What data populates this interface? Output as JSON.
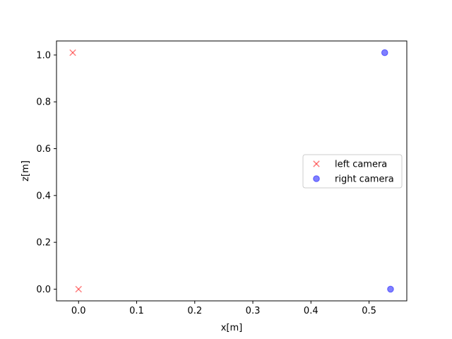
{
  "chart_data": {
    "type": "scatter",
    "title": "",
    "xlabel": "x[m]",
    "ylabel": "z[m]",
    "xlim": [
      -0.038,
      0.565
    ],
    "ylim": [
      -0.05,
      1.06
    ],
    "xticks": [
      "0.0",
      "0.1",
      "0.2",
      "0.3",
      "0.4",
      "0.5"
    ],
    "yticks": [
      "0.0",
      "0.2",
      "0.4",
      "0.6",
      "0.8",
      "1.0"
    ],
    "grid": false,
    "legend_position": "center-right",
    "series": [
      {
        "name": "left camera",
        "marker": "x",
        "color": "#ff0000",
        "points": [
          {
            "x": -0.01,
            "y": 1.01
          },
          {
            "x": 0.0,
            "y": 0.0
          }
        ]
      },
      {
        "name": "right camera",
        "marker": "o",
        "color": "#0000ff",
        "points": [
          {
            "x": 0.527,
            "y": 1.01
          },
          {
            "x": 0.537,
            "y": 0.0
          }
        ]
      }
    ]
  }
}
